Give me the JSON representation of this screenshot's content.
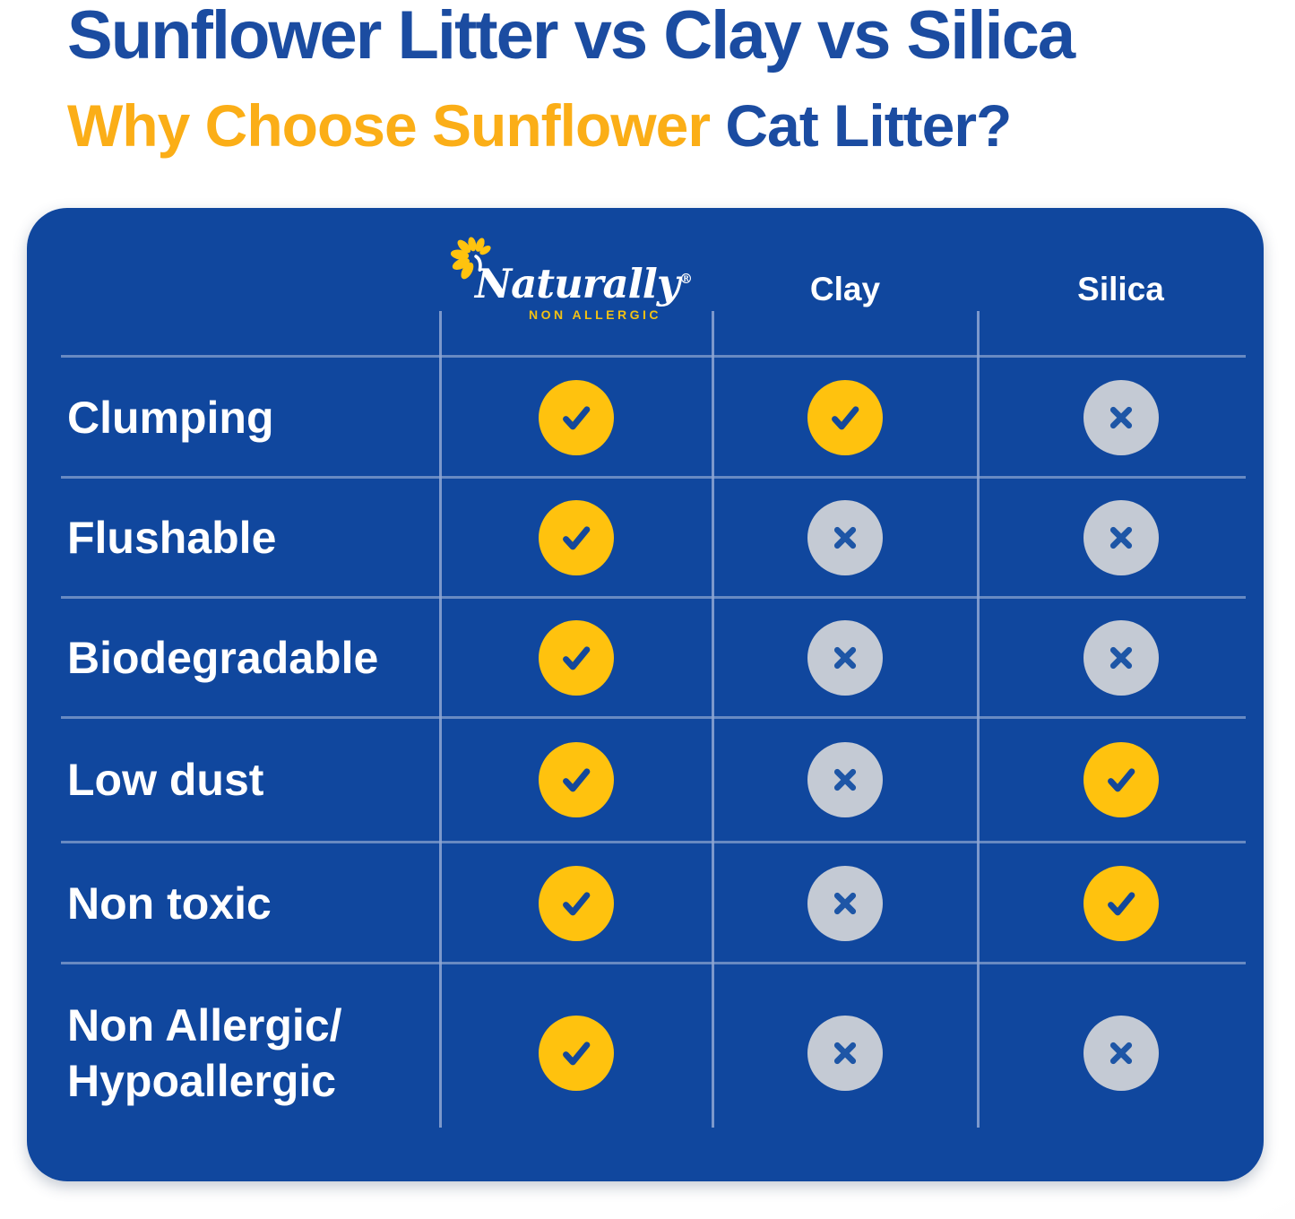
{
  "chart_data": {
    "type": "table",
    "title": "Sunflower Litter vs Clay vs Silica",
    "subtitle": {
      "highlight": "Why Choose Sunflower",
      "rest": " Cat Litter?"
    },
    "columns": [
      {
        "label": "Naturally",
        "registered": "®",
        "tagline": "NON ALLERGIC",
        "is_logo": true
      },
      {
        "label": "Clay"
      },
      {
        "label": "Silica"
      }
    ],
    "rows": [
      {
        "label": "Clumping",
        "values": [
          "yes",
          "yes",
          "no"
        ]
      },
      {
        "label": "Flushable",
        "values": [
          "yes",
          "no",
          "no"
        ]
      },
      {
        "label": "Biodegradable",
        "values": [
          "yes",
          "no",
          "no"
        ]
      },
      {
        "label": "Low dust",
        "values": [
          "yes",
          "no",
          "yes"
        ]
      },
      {
        "label": "Non toxic",
        "values": [
          "yes",
          "no",
          "yes"
        ]
      },
      {
        "label": "Non Allergic/ Hypoallergic",
        "values": [
          "yes",
          "no",
          "no"
        ]
      }
    ],
    "legend_semantics": {
      "yes": "check in yellow circle",
      "no": "x in gray circle"
    }
  },
  "colors": {
    "title_blue": "#1B4CA1",
    "subtitle_yellow": "#FBAE17",
    "panel_blue": "#10479E",
    "divider": "#8FA7D2",
    "check_circle_yellow": "#FFC20E",
    "check_mark_blue": "#14489A",
    "x_circle_gray": "#C4CAD4",
    "x_mark_blue": "#1E56A6",
    "tagline_yellow": "#F2C113"
  }
}
